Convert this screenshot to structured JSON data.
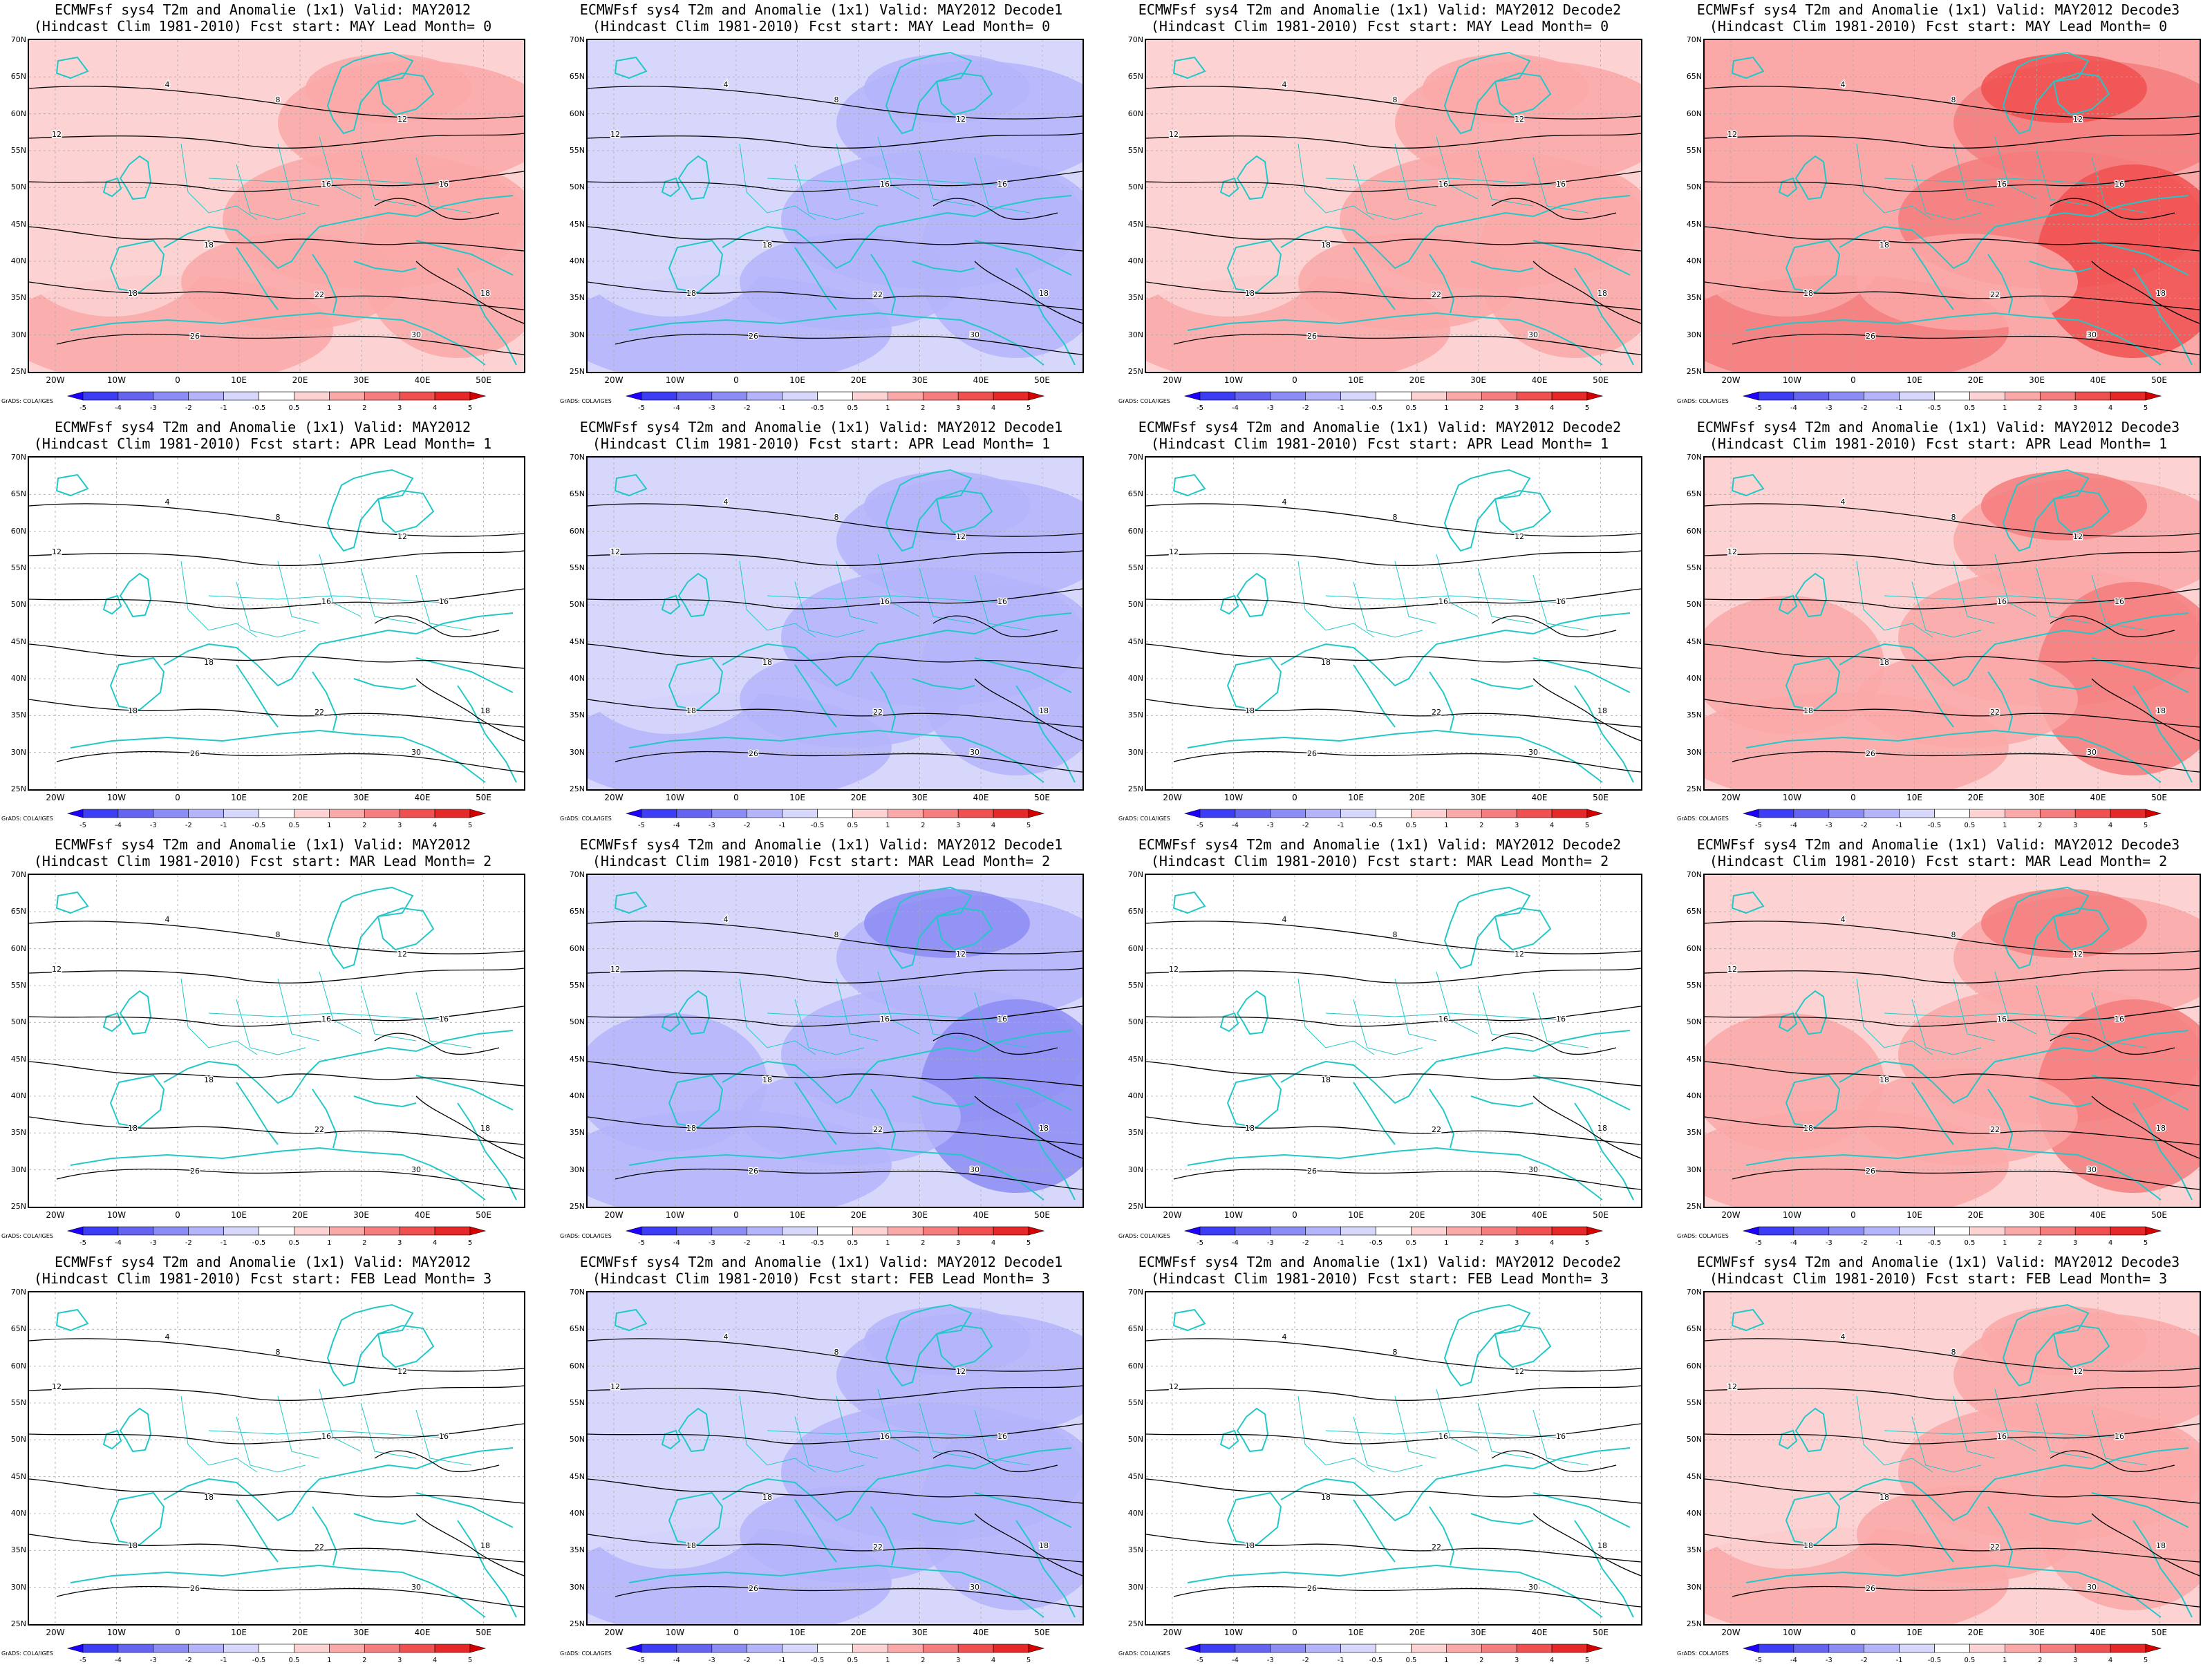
{
  "panels": [
    {
      "title": "ECMWFsf sys4  T2m and Anomalie (1x1) Valid: MAY2012",
      "subtitle": "(Hindcast Clim 1981-2010) Fcst start: MAY  Lead Month= 0",
      "anomaly_level": 1.5
    },
    {
      "title": "ECMWFsf sys4  T2m and Anomalie (1x1) Valid: MAY2012 Decode1",
      "subtitle": "(Hindcast Clim 1981-2010) Fcst start: MAY  Lead Month= 0",
      "anomaly_level": -1.5
    },
    {
      "title": "ECMWFsf sys4  T2m and Anomalie (1x1) Valid: MAY2012 Decode2",
      "subtitle": "(Hindcast Clim 1981-2010) Fcst start: MAY  Lead Month= 0",
      "anomaly_level": 1.5
    },
    {
      "title": "ECMWFsf sys4  T2m and Anomalie (1x1) Valid: MAY2012 Decode3",
      "subtitle": "(Hindcast Clim 1981-2010) Fcst start: MAY  Lead Month= 0",
      "anomaly_level": 2.5
    },
    {
      "title": "ECMWFsf sys4  T2m and Anomalie (1x1) Valid: MAY2012",
      "subtitle": "(Hindcast Clim 1981-2010) Fcst start: APR  Lead Month= 1",
      "anomaly_level": 0.3
    },
    {
      "title": "ECMWFsf sys4  T2m and Anomalie (1x1) Valid: MAY2012 Decode1",
      "subtitle": "(Hindcast Clim 1981-2010) Fcst start: APR  Lead Month= 1",
      "anomaly_level": -1.5
    },
    {
      "title": "ECMWFsf sys4  T2m and Anomalie (1x1) Valid: MAY2012 Decode2",
      "subtitle": "(Hindcast Clim 1981-2010) Fcst start: APR  Lead Month= 1",
      "anomaly_level": 0.3
    },
    {
      "title": "ECMWFsf sys4  T2m and Anomalie (1x1) Valid: MAY2012 Decode3",
      "subtitle": "(Hindcast Clim 1981-2010) Fcst start: APR  Lead Month= 1",
      "anomaly_level": 1.8
    },
    {
      "title": "ECMWFsf sys4  T2m and Anomalie (1x1) Valid: MAY2012",
      "subtitle": "(Hindcast Clim 1981-2010) Fcst start: MAR  Lead Month= 2",
      "anomaly_level": 0.2
    },
    {
      "title": "ECMWFsf sys4  T2m and Anomalie (1x1) Valid: MAY2012 Decode1",
      "subtitle": "(Hindcast Clim 1981-2010) Fcst start: MAR  Lead Month= 2",
      "anomaly_level": -1.8
    },
    {
      "title": "ECMWFsf sys4  T2m and Anomalie (1x1) Valid: MAY2012 Decode2",
      "subtitle": "(Hindcast Clim 1981-2010) Fcst start: MAR  Lead Month= 2",
      "anomaly_level": 0.2
    },
    {
      "title": "ECMWFsf sys4  T2m and Anomalie (1x1) Valid: MAY2012 Decode3",
      "subtitle": "(Hindcast Clim 1981-2010) Fcst start: MAR  Lead Month= 2",
      "anomaly_level": 1.8
    },
    {
      "title": "ECMWFsf sys4  T2m and Anomalie (1x1) Valid: MAY2012",
      "subtitle": "(Hindcast Clim 1981-2010) Fcst start: FEB  Lead Month= 3",
      "anomaly_level": 0.2
    },
    {
      "title": "ECMWFsf sys4  T2m and Anomalie (1x1) Valid: MAY2012 Decode1",
      "subtitle": "(Hindcast Clim 1981-2010) Fcst start: FEB  Lead Month= 3",
      "anomaly_level": -1.5
    },
    {
      "title": "ECMWFsf sys4  T2m and Anomalie (1x1) Valid: MAY2012 Decode2",
      "subtitle": "(Hindcast Clim 1981-2010) Fcst start: FEB  Lead Month= 3",
      "anomaly_level": -0.3
    },
    {
      "title": "ECMWFsf sys4  T2m and Anomalie (1x1) Valid: MAY2012 Decode3",
      "subtitle": "(Hindcast Clim 1981-2010) Fcst start: FEB  Lead Month= 3",
      "anomaly_level": 1.5
    }
  ],
  "lat_labels": [
    "70N",
    "65N",
    "60N",
    "55N",
    "50N",
    "45N",
    "40N",
    "35N",
    "30N",
    "25N"
  ],
  "lon_labels": [
    "20W",
    "10W",
    "0",
    "10E",
    "20E",
    "30E",
    "40E",
    "50E"
  ],
  "colorbar": {
    "ticks": [
      "-5",
      "-4",
      "-3",
      "-2",
      "-1",
      "-0.5",
      "0.5",
      "1",
      "2",
      "3",
      "4",
      "5"
    ],
    "colors": [
      "#1e00ff",
      "#3d3df5",
      "#6464f0",
      "#8c8cf5",
      "#b4b4fa",
      "#d7d7fc",
      "#ffffff",
      "#fcd2d2",
      "#faa8a8",
      "#f57d7d",
      "#f05050",
      "#e62828",
      "#d70000"
    ]
  },
  "credit": "GrADS: COLA/IGES",
  "contour_labels": [
    "4",
    "8",
    "12",
    "16",
    "18",
    "22",
    "26",
    "30"
  ]
}
